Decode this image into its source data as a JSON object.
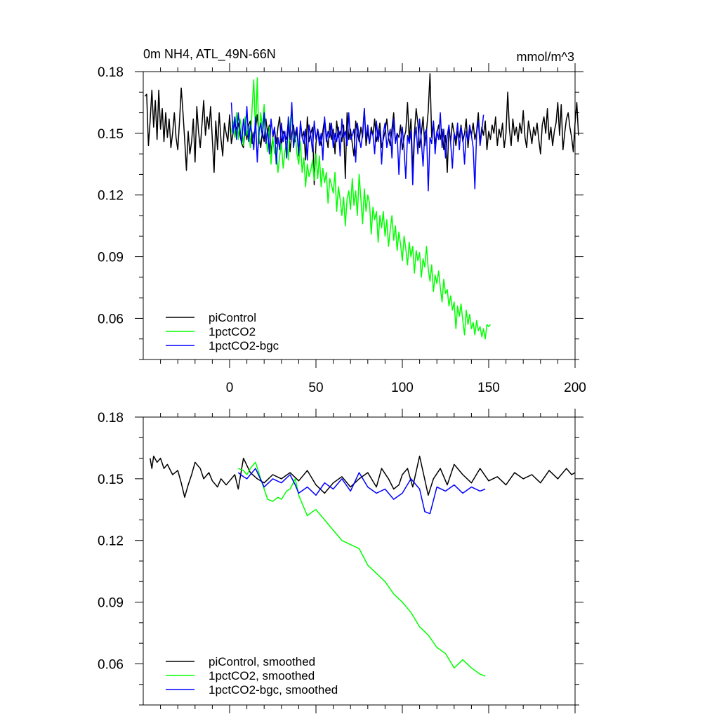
{
  "chart_data": [
    {
      "type": "line",
      "title": "0m NH4, ATL_49N-66N",
      "units": "mmol/m^3",
      "xlim": [
        -50,
        200
      ],
      "ylim": [
        0.04,
        0.18
      ],
      "yticks": [
        "0.18",
        "0.15",
        "0.12",
        "0.09",
        "0.06"
      ],
      "ytick_values": [
        0.18,
        0.15,
        0.12,
        0.09,
        0.06
      ],
      "xticks": [
        "0",
        "50",
        "100",
        "150",
        "200"
      ],
      "xtick_values": [
        0,
        50,
        100,
        150,
        200
      ],
      "legend_position": "bottom-left",
      "series": [
        {
          "name": "piControl",
          "color": "#000000",
          "x_start": -49,
          "x_step": 1,
          "values": [
            0.168,
            0.169,
            0.144,
            0.156,
            0.171,
            0.153,
            0.166,
            0.147,
            0.171,
            0.152,
            0.162,
            0.146,
            0.16,
            0.148,
            0.157,
            0.143,
            0.15,
            0.16,
            0.148,
            0.142,
            0.156,
            0.172,
            0.16,
            0.147,
            0.132,
            0.151,
            0.14,
            0.146,
            0.157,
            0.136,
            0.163,
            0.151,
            0.143,
            0.154,
            0.166,
            0.149,
            0.158,
            0.152,
            0.163,
            0.147,
            0.131,
            0.156,
            0.142,
            0.16,
            0.147,
            0.139,
            0.155,
            0.15,
            0.146,
            0.159,
            0.145,
            0.15,
            0.155,
            0.152,
            0.155,
            0.149,
            0.145,
            0.143,
            0.153,
            0.147,
            0.154,
            0.156,
            0.145,
            0.15,
            0.152,
            0.159,
            0.149,
            0.143,
            0.151,
            0.146,
            0.157,
            0.15,
            0.154,
            0.14,
            0.148,
            0.152,
            0.145,
            0.153,
            0.158,
            0.144,
            0.151,
            0.149,
            0.147,
            0.156,
            0.141,
            0.15,
            0.154,
            0.146,
            0.152,
            0.139,
            0.155,
            0.148,
            0.151,
            0.137,
            0.158,
            0.146,
            0.15,
            0.153,
            0.125,
            0.145,
            0.152,
            0.148,
            0.144,
            0.151,
            0.157,
            0.149,
            0.143,
            0.155,
            0.147,
            0.152,
            0.14,
            0.156,
            0.148,
            0.151,
            0.146,
            0.154,
            0.128,
            0.16,
            0.147,
            0.152,
            0.145,
            0.139,
            0.156,
            0.15,
            0.146,
            0.153,
            0.148,
            0.162,
            0.144,
            0.151,
            0.145,
            0.153,
            0.149,
            0.157,
            0.146,
            0.15,
            0.155,
            0.143,
            0.147,
            0.151,
            0.157,
            0.148,
            0.144,
            0.152,
            0.16,
            0.146,
            0.15,
            0.148,
            0.154,
            0.142,
            0.148,
            0.151,
            0.165,
            0.147,
            0.157,
            0.132,
            0.15,
            0.162,
            0.155,
            0.143,
            0.15,
            0.158,
            0.144,
            0.151,
            0.161,
            0.179,
            0.148,
            0.156,
            0.145,
            0.15,
            0.154,
            0.147,
            0.152,
            0.142,
            0.149,
            0.131,
            0.153,
            0.146,
            0.155,
            0.15,
            0.144,
            0.151,
            0.148,
            0.154,
            0.146,
            0.15,
            0.157,
            0.143,
            0.152,
            0.149,
            0.155,
            0.147,
            0.151,
            0.16,
            0.145,
            0.153,
            0.149,
            0.156,
            0.142,
            0.151,
            0.147,
            0.154,
            0.15,
            0.158,
            0.144,
            0.152,
            0.148,
            0.155,
            0.143,
            0.15,
            0.17,
            0.152,
            0.144,
            0.157,
            0.149,
            0.153,
            0.146,
            0.155,
            0.15,
            0.161,
            0.148,
            0.143,
            0.156,
            0.151,
            0.145,
            0.153,
            0.149,
            0.155,
            0.147,
            0.14,
            0.154,
            0.158,
            0.15,
            0.162,
            0.147,
            0.153,
            0.144,
            0.151,
            0.155,
            0.165,
            0.149,
            0.164,
            0.142,
            0.15,
            0.157,
            0.16,
            0.153,
            0.148,
            0.141,
            0.155,
            0.165,
            0.149
          ]
        },
        {
          "name": "1pctCO2",
          "color": "#00ff00",
          "x_start": 1,
          "x_step": 1,
          "values": [
            0.15,
            0.156,
            0.148,
            0.16,
            0.147,
            0.157,
            0.152,
            0.144,
            0.158,
            0.149,
            0.153,
            0.143,
            0.162,
            0.176,
            0.15,
            0.177,
            0.145,
            0.16,
            0.152,
            0.164,
            0.149,
            0.141,
            0.153,
            0.135,
            0.148,
            0.14,
            0.143,
            0.131,
            0.139,
            0.145,
            0.133,
            0.141,
            0.146,
            0.137,
            0.155,
            0.162,
            0.143,
            0.15,
            0.14,
            0.135,
            0.146,
            0.131,
            0.138,
            0.124,
            0.135,
            0.129,
            0.132,
            0.137,
            0.127,
            0.14,
            0.128,
            0.139,
            0.124,
            0.133,
            0.126,
            0.131,
            0.116,
            0.128,
            0.125,
            0.121,
            0.131,
            0.112,
            0.124,
            0.118,
            0.11,
            0.119,
            0.105,
            0.118,
            0.122,
            0.113,
            0.128,
            0.115,
            0.122,
            0.11,
            0.13,
            0.118,
            0.106,
            0.123,
            0.112,
            0.12,
            0.116,
            0.101,
            0.114,
            0.108,
            0.112,
            0.097,
            0.11,
            0.104,
            0.112,
            0.1,
            0.108,
            0.095,
            0.103,
            0.11,
            0.098,
            0.105,
            0.093,
            0.102,
            0.096,
            0.088,
            0.1,
            0.094,
            0.086,
            0.097,
            0.09,
            0.095,
            0.082,
            0.093,
            0.088,
            0.092,
            0.08,
            0.089,
            0.085,
            0.095,
            0.084,
            0.078,
            0.086,
            0.073,
            0.081,
            0.077,
            0.083,
            0.075,
            0.068,
            0.079,
            0.072,
            0.074,
            0.066,
            0.071,
            0.064,
            0.068,
            0.055,
            0.066,
            0.061,
            0.067,
            0.059,
            0.052,
            0.064,
            0.057,
            0.062,
            0.055,
            0.058,
            0.052,
            0.059,
            0.054,
            0.056,
            0.051,
            0.055,
            0.05,
            0.057,
            0.056,
            0.057
          ]
        },
        {
          "name": "1pctCO2-bgc",
          "color": "#0000ff",
          "x_start": 1,
          "x_step": 1,
          "values": [
            0.165,
            0.15,
            0.158,
            0.147,
            0.16,
            0.152,
            0.145,
            0.157,
            0.149,
            0.163,
            0.146,
            0.154,
            0.15,
            0.142,
            0.158,
            0.136,
            0.151,
            0.155,
            0.148,
            0.16,
            0.145,
            0.152,
            0.14,
            0.157,
            0.149,
            0.153,
            0.135,
            0.148,
            0.142,
            0.155,
            0.146,
            0.151,
            0.138,
            0.158,
            0.147,
            0.165,
            0.143,
            0.15,
            0.153,
            0.14,
            0.156,
            0.148,
            0.145,
            0.152,
            0.137,
            0.154,
            0.149,
            0.141,
            0.156,
            0.147,
            0.152,
            0.144,
            0.15,
            0.137,
            0.158,
            0.146,
            0.151,
            0.148,
            0.155,
            0.143,
            0.15,
            0.146,
            0.153,
            0.139,
            0.157,
            0.148,
            0.151,
            0.144,
            0.16,
            0.147,
            0.149,
            0.152,
            0.136,
            0.155,
            0.148,
            0.143,
            0.15,
            0.162,
            0.147,
            0.154,
            0.145,
            0.151,
            0.149,
            0.14,
            0.156,
            0.146,
            0.152,
            0.135,
            0.15,
            0.155,
            0.143,
            0.148,
            0.152,
            0.138,
            0.157,
            0.145,
            0.15,
            0.13,
            0.146,
            0.153,
            0.142,
            0.128,
            0.149,
            0.145,
            0.151,
            0.125,
            0.147,
            0.153,
            0.14,
            0.157,
            0.146,
            0.134,
            0.15,
            0.152,
            0.122,
            0.148,
            0.145,
            0.156,
            0.14,
            0.151,
            0.147,
            0.16,
            0.143,
            0.152,
            0.138,
            0.149,
            0.154,
            0.145,
            0.133,
            0.15,
            0.147,
            0.155,
            0.142,
            0.153,
            0.148,
            0.135,
            0.151,
            0.146,
            0.154,
            0.149,
            0.143,
            0.123,
            0.15,
            0.156,
            0.144,
            0.151,
            0.159
          ]
        }
      ]
    },
    {
      "type": "line",
      "title": "",
      "units": "",
      "xlim": [
        -50,
        200
      ],
      "ylim": [
        0.04,
        0.18
      ],
      "yticks": [
        "0.18",
        "0.15",
        "0.12",
        "0.09",
        "0.06"
      ],
      "ytick_values": [
        0.18,
        0.15,
        0.12,
        0.09,
        0.06
      ],
      "legend_position": "bottom-left",
      "series": [
        {
          "name": "piControl, smoothed",
          "color": "#000000",
          "x": [
            -46,
            -45,
            -44,
            -42,
            -40,
            -38,
            -36,
            -33,
            -30,
            -28,
            -26,
            -24,
            -22,
            -20,
            -17,
            -15,
            -12,
            -10,
            -7,
            -5,
            -2,
            0,
            3,
            5,
            8,
            12,
            16,
            20,
            25,
            30,
            35,
            40,
            45,
            50,
            55,
            60,
            65,
            70,
            75,
            80,
            85,
            88,
            92,
            95,
            98,
            100,
            103,
            106,
            110,
            115,
            118,
            122,
            126,
            130,
            135,
            140,
            145,
            150,
            155,
            160,
            165,
            170,
            175,
            180,
            185,
            190,
            195,
            198,
            200
          ],
          "values": [
            0.16,
            0.155,
            0.161,
            0.158,
            0.16,
            0.155,
            0.157,
            0.152,
            0.154,
            0.148,
            0.141,
            0.147,
            0.152,
            0.158,
            0.155,
            0.15,
            0.153,
            0.149,
            0.146,
            0.15,
            0.147,
            0.149,
            0.152,
            0.145,
            0.16,
            0.153,
            0.15,
            0.148,
            0.152,
            0.15,
            0.153,
            0.149,
            0.154,
            0.147,
            0.143,
            0.148,
            0.151,
            0.146,
            0.15,
            0.153,
            0.146,
            0.155,
            0.15,
            0.145,
            0.147,
            0.152,
            0.155,
            0.146,
            0.161,
            0.142,
            0.15,
            0.155,
            0.147,
            0.157,
            0.152,
            0.148,
            0.155,
            0.149,
            0.151,
            0.147,
            0.153,
            0.15,
            0.152,
            0.148,
            0.154,
            0.15,
            0.155,
            0.152,
            0.153
          ]
        },
        {
          "name": "1pctCO2, smoothed",
          "color": "#00ff00",
          "x": [
            5,
            8,
            10,
            12,
            15,
            18,
            20,
            22,
            25,
            28,
            30,
            33,
            35,
            38,
            40,
            42,
            45,
            48,
            50,
            55,
            60,
            65,
            70,
            75,
            80,
            85,
            90,
            95,
            100,
            105,
            110,
            115,
            120,
            125,
            130,
            135,
            140,
            145,
            148
          ],
          "values": [
            0.155,
            0.154,
            0.152,
            0.155,
            0.158,
            0.15,
            0.145,
            0.14,
            0.139,
            0.141,
            0.14,
            0.144,
            0.145,
            0.15,
            0.142,
            0.138,
            0.132,
            0.134,
            0.135,
            0.13,
            0.125,
            0.12,
            0.118,
            0.116,
            0.108,
            0.104,
            0.1,
            0.094,
            0.09,
            0.085,
            0.078,
            0.074,
            0.068,
            0.065,
            0.058,
            0.062,
            0.058,
            0.055,
            0.054
          ]
        },
        {
          "name": "1pctCO2-bgc, smoothed",
          "color": "#0000ff",
          "x": [
            5,
            8,
            10,
            15,
            20,
            25,
            30,
            35,
            38,
            40,
            45,
            50,
            55,
            60,
            65,
            70,
            75,
            80,
            85,
            90,
            95,
            100,
            105,
            110,
            113,
            116,
            120,
            125,
            130,
            135,
            140,
            145,
            148
          ],
          "values": [
            0.153,
            0.151,
            0.15,
            0.155,
            0.146,
            0.15,
            0.148,
            0.152,
            0.147,
            0.143,
            0.146,
            0.142,
            0.148,
            0.145,
            0.15,
            0.144,
            0.153,
            0.146,
            0.143,
            0.145,
            0.14,
            0.143,
            0.15,
            0.145,
            0.134,
            0.133,
            0.146,
            0.144,
            0.147,
            0.143,
            0.146,
            0.144,
            0.145
          ]
        }
      ]
    }
  ]
}
